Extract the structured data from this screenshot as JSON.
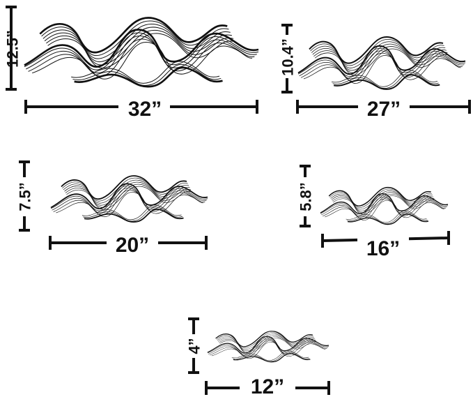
{
  "sizes": [
    {
      "width_label": "32”",
      "height_label": "12.5”"
    },
    {
      "width_label": "27”",
      "height_label": "10.4”"
    },
    {
      "width_label": "20”",
      "height_label": "7.5”"
    },
    {
      "width_label": "16”",
      "height_label": "5.8”"
    },
    {
      "width_label": "12”",
      "height_label": "4”"
    }
  ],
  "colors": {
    "ink": "#111111",
    "background": "#ffffff"
  },
  "artwork_icon": "wave-ribbon-sculpture"
}
